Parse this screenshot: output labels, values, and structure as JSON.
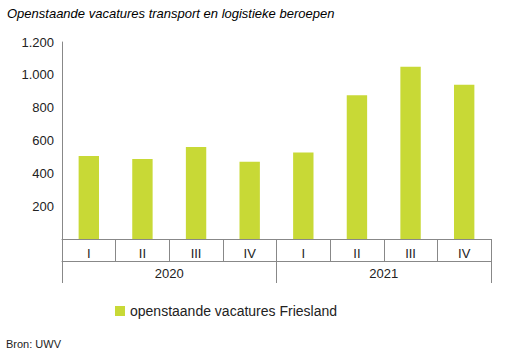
{
  "chart_data": {
    "type": "bar",
    "title": "Openstaande vacatures transport en logistieke beroepen",
    "source": "Bron: UWV",
    "categories": [
      "I",
      "II",
      "III",
      "IV",
      "I",
      "II",
      "III",
      "IV"
    ],
    "x_groups": [
      "2020",
      "2020",
      "2020",
      "2020",
      "2021",
      "2021",
      "2021",
      "2021"
    ],
    "series": [
      {
        "name": "openstaande vacatures Friesland",
        "color": "#c8d936",
        "values": [
          505,
          487,
          560,
          470,
          527,
          875,
          1050,
          940
        ]
      }
    ],
    "ylim": [
      0,
      1200
    ],
    "yticks": [
      200,
      400,
      600,
      800,
      {
        "value": 1000,
        "label": "1.000"
      },
      {
        "value": 1200,
        "label": "1.200"
      }
    ],
    "grid": false,
    "legend": "bottom"
  }
}
